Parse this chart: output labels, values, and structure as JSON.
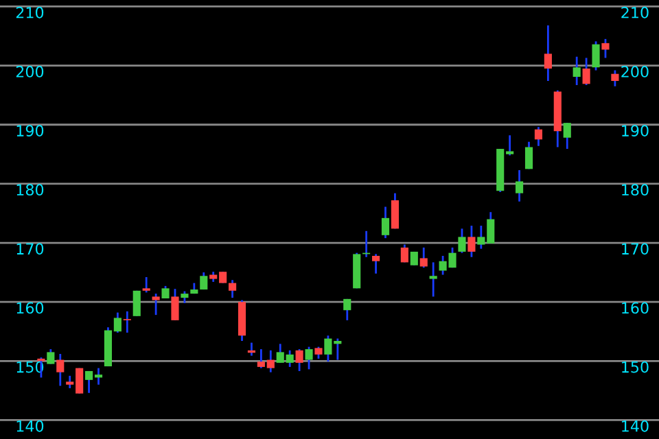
{
  "chart_data": {
    "type": "candlestick",
    "categories": [
      null,
      null,
      null,
      null,
      null,
      null,
      null,
      null,
      null,
      null,
      null,
      null,
      null,
      null,
      null,
      null,
      null,
      null,
      null,
      null,
      null,
      null,
      null,
      null,
      null,
      null,
      null,
      null,
      null,
      null,
      null,
      null,
      null,
      null,
      null,
      null,
      null,
      null,
      null,
      null,
      null,
      null,
      null,
      null,
      null,
      null,
      null,
      null,
      null,
      null,
      null,
      null,
      null,
      null,
      null,
      null,
      null,
      null,
      null,
      null,
      null
    ],
    "ohlc": [
      [
        150.4,
        150.6,
        147.2,
        150.0
      ],
      [
        149.5,
        152.0,
        149.5,
        151.5
      ],
      [
        150.2,
        151.2,
        145.8,
        148.1
      ],
      [
        146.5,
        147.5,
        145.4,
        146.0
      ],
      [
        148.8,
        148.8,
        144.5,
        144.5
      ],
      [
        146.8,
        148.3,
        144.6,
        148.3
      ],
      [
        147.2,
        148.8,
        146.0,
        147.7
      ],
      [
        149.1,
        155.7,
        149.1,
        155.2
      ],
      [
        155.0,
        158.2,
        154.8,
        157.3
      ],
      [
        157.1,
        158.4,
        154.8,
        156.9
      ],
      [
        157.6,
        161.9,
        157.6,
        161.9
      ],
      [
        162.3,
        164.2,
        161.6,
        161.9
      ],
      [
        160.9,
        161.4,
        157.8,
        160.3
      ],
      [
        160.6,
        162.7,
        160.6,
        162.3
      ],
      [
        160.9,
        162.2,
        156.9,
        156.9
      ],
      [
        160.7,
        161.8,
        159.8,
        161.4
      ],
      [
        161.4,
        163.2,
        161.4,
        162.1
      ],
      [
        162.1,
        165.0,
        162.1,
        164.4
      ],
      [
        164.6,
        165.1,
        163.4,
        163.9
      ],
      [
        165.1,
        165.1,
        163.2,
        163.2
      ],
      [
        163.2,
        163.7,
        160.7,
        161.9
      ],
      [
        160.0,
        160.3,
        153.4,
        154.3
      ],
      [
        151.8,
        153.1,
        150.9,
        151.4
      ],
      [
        149.9,
        152.0,
        148.8,
        149.0
      ],
      [
        150.2,
        151.8,
        148.1,
        148.8
      ],
      [
        149.7,
        152.9,
        149.7,
        151.5
      ],
      [
        149.7,
        151.8,
        149.0,
        151.1
      ],
      [
        151.8,
        152.0,
        148.3,
        149.7
      ],
      [
        150.2,
        152.4,
        148.6,
        152.0
      ],
      [
        152.2,
        152.4,
        150.4,
        151.1
      ],
      [
        151.1,
        154.3,
        149.9,
        153.8
      ],
      [
        152.9,
        153.8,
        150.2,
        153.4
      ],
      [
        158.6,
        160.5,
        156.9,
        160.5
      ],
      [
        162.3,
        168.3,
        162.3,
        168.1
      ],
      [
        168.1,
        172.0,
        167.6,
        168.3
      ],
      [
        167.8,
        168.1,
        164.8,
        166.9
      ],
      [
        171.3,
        176.1,
        170.8,
        174.2
      ],
      [
        177.2,
        178.4,
        172.4,
        172.4
      ],
      [
        169.2,
        169.7,
        166.7,
        166.7
      ],
      [
        166.2,
        168.5,
        166.2,
        168.5
      ],
      [
        167.4,
        169.2,
        165.8,
        166.0
      ],
      [
        163.9,
        166.7,
        160.9,
        164.4
      ],
      [
        165.3,
        167.8,
        164.6,
        166.9
      ],
      [
        165.8,
        169.2,
        165.8,
        168.3
      ],
      [
        168.5,
        172.4,
        168.3,
        171.0
      ],
      [
        171.0,
        172.9,
        167.6,
        168.5
      ],
      [
        169.7,
        172.9,
        169.0,
        171.0
      ],
      [
        169.9,
        175.2,
        169.9,
        174.0
      ],
      [
        178.8,
        185.9,
        178.6,
        185.9
      ],
      [
        185.0,
        188.2,
        184.8,
        185.5
      ],
      [
        178.4,
        182.3,
        177.0,
        180.4
      ],
      [
        182.5,
        187.1,
        182.5,
        186.2
      ],
      [
        189.2,
        189.6,
        186.4,
        187.5
      ],
      [
        202.0,
        206.8,
        197.4,
        199.5
      ],
      [
        195.6,
        195.8,
        186.2,
        188.9
      ],
      [
        187.8,
        190.3,
        185.9,
        190.3
      ],
      [
        198.1,
        201.5,
        196.7,
        199.7
      ],
      [
        199.5,
        201.3,
        196.7,
        196.9
      ],
      [
        199.7,
        204.1,
        199.2,
        203.6
      ],
      [
        203.8,
        204.5,
        201.3,
        202.7
      ],
      [
        198.6,
        199.2,
        196.5,
        197.4
      ]
    ],
    "colors": [
      "#ff4444",
      "#44cc44",
      "#ff4444",
      "#ff4444",
      "#ff4444",
      "#44cc44",
      "#44cc44",
      "#44cc44",
      "#44cc44",
      "#ff4444",
      "#44cc44",
      "#ff4444",
      "#ff4444",
      "#44cc44",
      "#ff4444",
      "#44cc44",
      "#44cc44",
      "#44cc44",
      "#ff4444",
      "#ff4444",
      "#ff4444",
      "#ff4444",
      "#ff4444",
      "#ff4444",
      "#ff4444",
      "#44cc44",
      "#44cc44",
      "#ff4444",
      "#44cc44",
      "#ff4444",
      "#44cc44",
      "#44cc44",
      "#44cc44",
      "#44cc44",
      "#44cc44",
      "#ff4444",
      "#44cc44",
      "#ff4444",
      "#ff4444",
      "#44cc44",
      "#ff4444",
      "#44cc44",
      "#44cc44",
      "#44cc44",
      "#44cc44",
      "#ff4444",
      "#44cc44",
      "#44cc44",
      "#44cc44",
      "#44cc44",
      "#44cc44",
      "#44cc44",
      "#ff4444",
      "#ff4444",
      "#ff4444",
      "#44cc44",
      "#44cc44",
      "#ff4444",
      "#44cc44",
      "#ff4444",
      "#ff4444"
    ],
    "ylim": [
      136.8,
      211.1
    ],
    "yticks": [
      140,
      150,
      160,
      170,
      180,
      190,
      200,
      210
    ],
    "y2lim": [
      136.8,
      211.1
    ],
    "y2ticks": [
      140,
      150,
      160,
      170,
      180,
      190,
      200,
      210
    ],
    "grid": "y",
    "tick_labels": "y"
  }
}
